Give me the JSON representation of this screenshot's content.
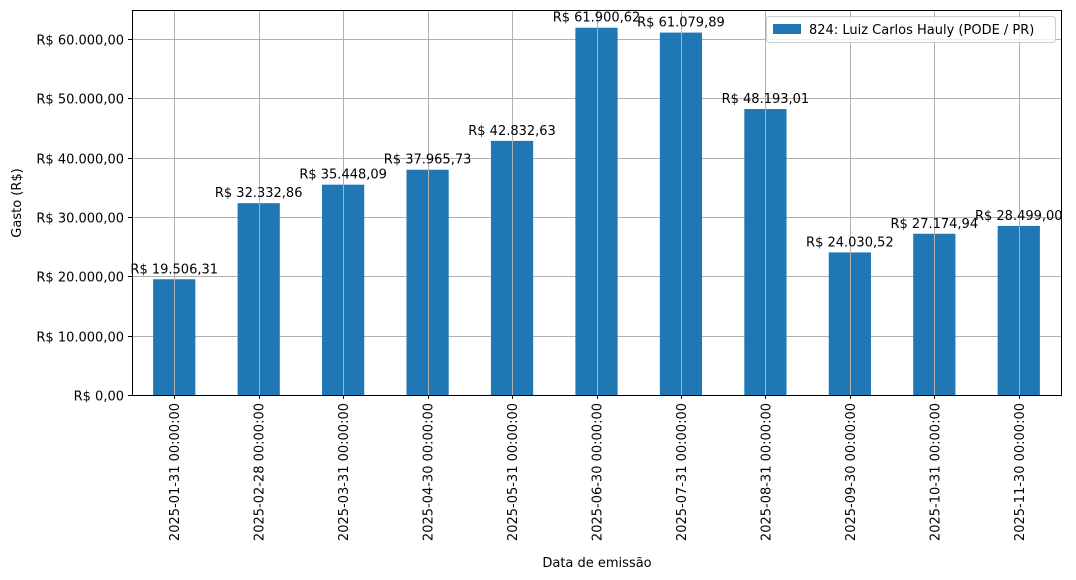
{
  "chart_data": {
    "type": "bar",
    "title": "",
    "xlabel": "Data de emissão",
    "ylabel": "Gasto (R$)",
    "ylim": [
      0,
      65000
    ],
    "grid": true,
    "legend_position": "upper right",
    "bar_color": "#1f77b4",
    "categories": [
      "2025-01-31 00:00:00",
      "2025-02-28 00:00:00",
      "2025-03-31 00:00:00",
      "2025-04-30 00:00:00",
      "2025-05-31 00:00:00",
      "2025-06-30 00:00:00",
      "2025-07-31 00:00:00",
      "2025-08-31 00:00:00",
      "2025-09-30 00:00:00",
      "2025-10-31 00:00:00",
      "2025-11-30 00:00:00"
    ],
    "series": [
      {
        "name": "824: Luiz Carlos Hauly (PODE / PR)",
        "values": [
          19506.31,
          32332.86,
          35448.09,
          37965.73,
          42832.63,
          61900.62,
          61079.89,
          48193.01,
          24030.52,
          27174.94,
          28499.0
        ],
        "labels": [
          "R$ 19.506,31",
          "R$ 32.332,86",
          "R$ 35.448,09",
          "R$ 37.965,73",
          "R$ 42.832,63",
          "R$ 61.900,62",
          "R$ 61.079,89",
          "R$ 48.193,01",
          "R$ 24.030,52",
          "R$ 27.174,94",
          "R$ 28.499,00"
        ]
      }
    ],
    "yticks": [
      0,
      10000,
      20000,
      30000,
      40000,
      50000,
      60000
    ],
    "ytick_labels": [
      "R$ 0,00",
      "R$ 10.000,00",
      "R$ 20.000,00",
      "R$ 30.000,00",
      "R$ 40.000,00",
      "R$ 50.000,00",
      "R$ 60.000,00"
    ]
  }
}
